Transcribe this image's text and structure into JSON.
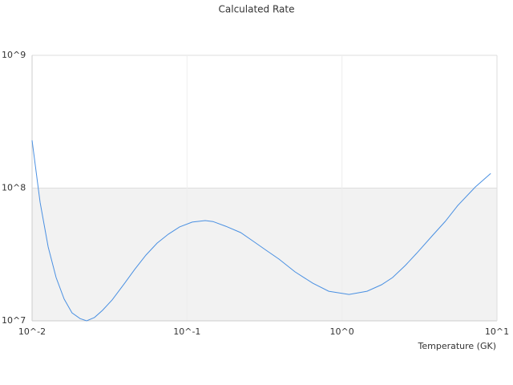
{
  "chart_data": {
    "type": "line",
    "title": "Calculated Rate",
    "x_label": "Temperature (GK)",
    "x_log": true,
    "y_log": true,
    "grid": true,
    "bands": true,
    "xlim": [
      0.01,
      10
    ],
    "ylim": [
      10000000,
      1000000000
    ],
    "xticks": [
      {
        "value": 0.01,
        "label": "10^-2"
      },
      {
        "value": 0.1,
        "label": "10^-1"
      },
      {
        "value": 1,
        "label": "10^0"
      },
      {
        "value": 10,
        "label": "10^1"
      }
    ],
    "yticks": [
      {
        "value": 10000000,
        "label": "10^7"
      },
      {
        "value": 100000000,
        "label": "10^8"
      },
      {
        "value": 1000000000,
        "label": "10^9"
      }
    ],
    "series": [
      {
        "color": "#4a90e2",
        "x": [
          0.01,
          0.01127,
          0.0127,
          0.0143,
          0.0161,
          0.0181,
          0.0204,
          0.0225,
          0.0253,
          0.0285,
          0.0329,
          0.0393,
          0.0459,
          0.0543,
          0.0641,
          0.0758,
          0.0895,
          0.108,
          0.131,
          0.147,
          0.178,
          0.222,
          0.268,
          0.324,
          0.392,
          0.497,
          0.648,
          0.821,
          1.11,
          1.45,
          1.8,
          2.12,
          2.56,
          3.03,
          3.82,
          4.64,
          5.6,
          7.25,
          9.11
        ],
        "values": [
          229000000,
          78300000,
          36000000,
          21200000,
          14600000,
          11500000,
          10400000,
          10000000,
          10600000,
          12000000,
          14400000,
          19000000,
          24400000,
          31300000,
          38500000,
          45000000,
          51000000,
          55400000,
          56900000,
          56000000,
          51600000,
          46200000,
          39700000,
          34000000,
          29200000,
          23400000,
          19200000,
          16700000,
          15800000,
          16700000,
          18700000,
          21200000,
          26100000,
          32200000,
          43700000,
          56100000,
          74100000,
          102000000,
          129000000
        ]
      }
    ]
  }
}
